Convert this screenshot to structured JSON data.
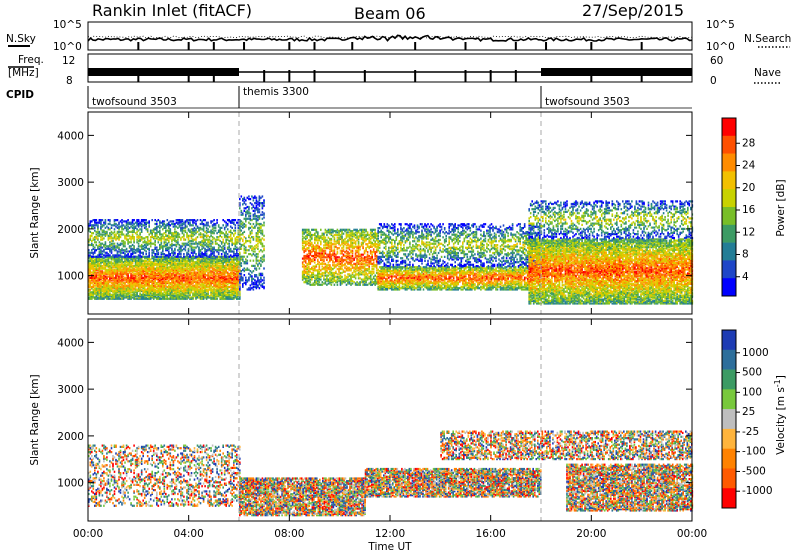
{
  "header": {
    "station": "Rankin Inlet (fitACF)",
    "beam": "Beam 06",
    "date": "27/Sep/2015"
  },
  "strip": {
    "nsky_label": "N.Sky",
    "nsearch_label": "N.Search",
    "nsky_ticks": [
      "10^5",
      "10^0"
    ],
    "nsearch_ticks": [
      "10^5",
      "10^0"
    ],
    "freq_label_line1": "Freq.",
    "freq_label_line2": "[MHz]",
    "freq_ticks": [
      "12",
      "8"
    ],
    "nave_label": "Nave",
    "nave_ticks": [
      "60",
      "0"
    ],
    "cpid_label": "CPID",
    "cpid_segments": [
      {
        "name": "twofsound 3503",
        "start_hour": 0,
        "end_hour": 6
      },
      {
        "name": "themis 3300",
        "start_hour": 6,
        "end_hour": 18
      },
      {
        "name": "twofsound 3503",
        "start_hour": 18,
        "end_hour": 24
      }
    ]
  },
  "chart_data": [
    {
      "type": "heatmap",
      "panel": "power",
      "ylabel": "Slant Range [km]",
      "xlim": [
        0,
        24
      ],
      "ylim": [
        180,
        4500
      ],
      "yticks": [
        1000,
        2000,
        3000,
        4000
      ],
      "colorbar_label": "Power [dB]",
      "colorbar_ticks": [
        "28",
        "24",
        "20",
        "16",
        "12",
        "8",
        "4"
      ],
      "colorbar_colors": [
        "#ff0000",
        "#ff5000",
        "#ff8c00",
        "#f2c000",
        "#c8d200",
        "#78be28",
        "#3c9b64",
        "#237d96",
        "#1e46c8",
        "#0000ff"
      ],
      "scatter_bands": [
        {
          "start_hour": 0.0,
          "end_hour": 6.0,
          "range_km": [
            500,
            1400
          ],
          "level": 0.85
        },
        {
          "start_hour": 0.0,
          "end_hour": 6.0,
          "range_km": [
            1400,
            2200
          ],
          "level": 0.45
        },
        {
          "start_hour": 6.0,
          "end_hour": 7.0,
          "range_km": [
            700,
            2700
          ],
          "level": 0.35
        },
        {
          "start_hour": 8.5,
          "end_hour": 11.5,
          "range_km": [
            800,
            2000
          ],
          "level": 0.55
        },
        {
          "start_hour": 11.5,
          "end_hour": 17.5,
          "range_km": [
            700,
            1200
          ],
          "level": 0.75
        },
        {
          "start_hour": 11.5,
          "end_hour": 18.0,
          "range_km": [
            1200,
            2100
          ],
          "level": 0.4
        },
        {
          "start_hour": 17.5,
          "end_hour": 24.0,
          "range_km": [
            400,
            1800
          ],
          "level": 0.8
        },
        {
          "start_hour": 17.5,
          "end_hour": 24.0,
          "range_km": [
            1800,
            2600
          ],
          "level": 0.35
        }
      ]
    },
    {
      "type": "heatmap",
      "panel": "velocity",
      "xlabel": "Time UT",
      "ylabel": "Slant Range [km]",
      "xlim": [
        0,
        24
      ],
      "ylim": [
        180,
        4500
      ],
      "xticks": [
        "00:00",
        "04:00",
        "08:00",
        "12:00",
        "16:00",
        "20:00",
        "00:00"
      ],
      "yticks": [
        1000,
        2000,
        3000,
        4000
      ],
      "colorbar_label": "Velocity [m s^-1]",
      "colorbar_ticks": [
        "1000",
        "500",
        "100",
        "25",
        "-25",
        "-100",
        "-500",
        "-1000"
      ],
      "colorbar_colors": [
        "#1e3cb4",
        "#2d6e9b",
        "#3c9b64",
        "#78c83c",
        "#bebebe",
        "#ffb43c",
        "#ff8200",
        "#ff5a00",
        "#ff0000"
      ],
      "scatter_bands": [
        {
          "start_hour": 0.0,
          "end_hour": 6.0,
          "range_km": [
            500,
            1800
          ],
          "level": 0.3
        },
        {
          "start_hour": 6.0,
          "end_hour": 11.0,
          "range_km": [
            300,
            1100
          ],
          "level": 0.75
        },
        {
          "start_hour": 11.0,
          "end_hour": 18.0,
          "range_km": [
            700,
            1300
          ],
          "level": 0.75
        },
        {
          "start_hour": 14.0,
          "end_hour": 24.0,
          "range_km": [
            1500,
            2100
          ],
          "level": 0.5
        },
        {
          "start_hour": 19.0,
          "end_hour": 24.0,
          "range_km": [
            400,
            1400
          ],
          "level": 0.7
        }
      ]
    }
  ]
}
